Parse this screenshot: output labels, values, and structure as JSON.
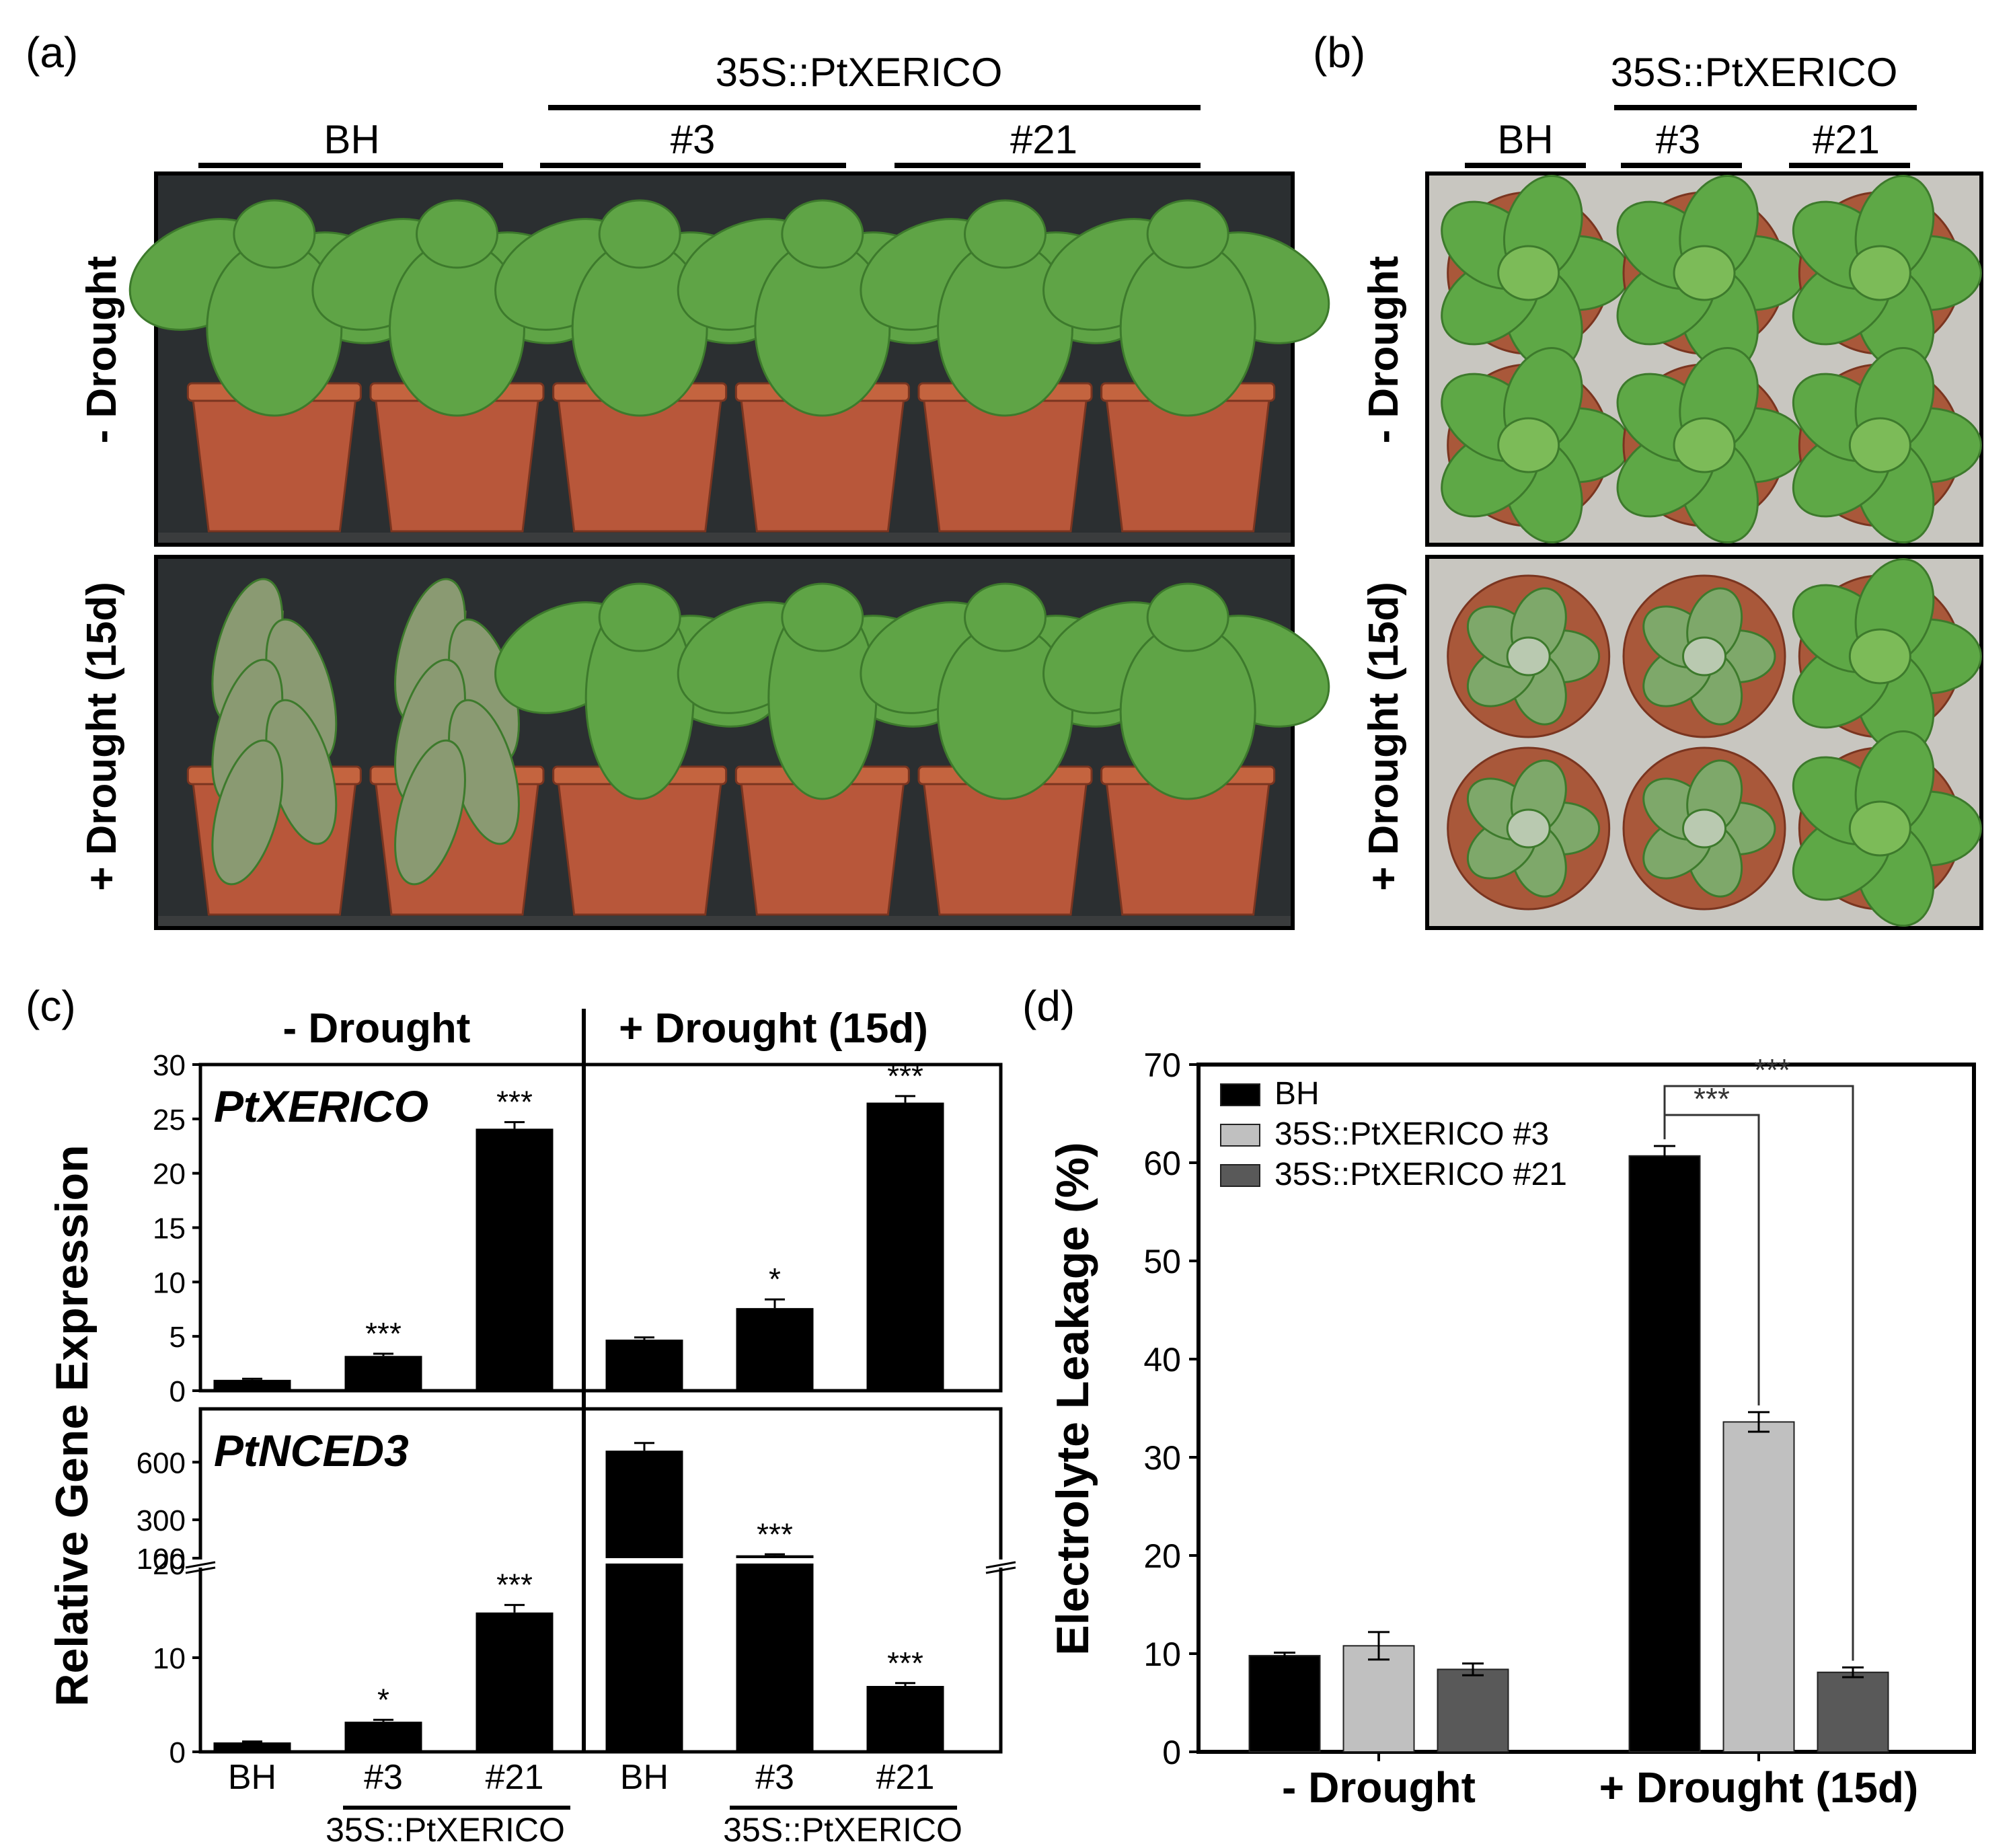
{
  "panels": {
    "a": {
      "label": "(a)",
      "group_label": "35S::PtXERICO",
      "columns": [
        "BH",
        "#3",
        "#21"
      ],
      "rows": [
        "- Drought",
        "+ Drought (15d)"
      ],
      "colors": {
        "background": "#2b2f31",
        "floor": "#3a3c3d",
        "pot": "#b8573a",
        "leaf": "#5fa446",
        "wilted": "#8a9a72"
      }
    },
    "b": {
      "label": "(b)",
      "group_label": "35S::PtXERICO",
      "columns": [
        "BH",
        "#3",
        "#21"
      ],
      "rows": [
        "- Drought",
        "+ Drought (15d)"
      ],
      "colors": {
        "background": "#c8c6c0",
        "pot": "#a9583a",
        "leaf": "#5ea846"
      }
    },
    "c": {
      "label": "(c)",
      "ylabel": "Relative Gene Expression",
      "conditions": [
        "- Drought",
        "+ Drought (15d)"
      ],
      "categories": [
        "BH",
        "#3",
        "#21",
        "BH",
        "#3",
        "#21"
      ],
      "group_labels": [
        "35S::PtXERICO",
        "35S::PtXERICO"
      ]
    },
    "d": {
      "label": "(d)",
      "ylabel": "Electrolyte Leakage (%)",
      "legend": [
        "BH",
        "35S::PtXERICO #3",
        "35S::PtXERICO #21"
      ],
      "sig_labels": [
        "***",
        "***"
      ]
    }
  },
  "chart_data": [
    {
      "type": "bar",
      "panel": "c-top",
      "gene": "PtXERICO",
      "categories": [
        "BH",
        "#3",
        "#21",
        "BH",
        "#3",
        "#21"
      ],
      "values": [
        1.0,
        3.2,
        24.1,
        4.7,
        7.6,
        26.5
      ],
      "errors": [
        0.1,
        0.2,
        0.6,
        0.2,
        0.8,
        0.6
      ],
      "significance": [
        "",
        "***",
        "***",
        "",
        "*",
        "***"
      ],
      "yticks": [
        0,
        5,
        10,
        15,
        20,
        25,
        30
      ],
      "ylim": [
        0,
        30
      ],
      "color": "#000000"
    },
    {
      "type": "bar",
      "panel": "c-bottom",
      "gene": "PtNCED3",
      "categories": [
        "BH",
        "#3",
        "#21",
        "BH",
        "#3",
        "#21"
      ],
      "values": [
        1.0,
        3.2,
        14.8,
        660,
        115,
        7.0
      ],
      "errors": [
        0.1,
        0.2,
        0.8,
        40,
        5,
        0.3
      ],
      "significance": [
        "",
        "*",
        "***",
        "",
        "***",
        "***"
      ],
      "yticks": [
        "0",
        "10",
        "20",
        "100",
        "300",
        "600"
      ],
      "axis_break": [
        20,
        100
      ],
      "ylim": [
        0,
        720
      ],
      "color": "#000000"
    },
    {
      "type": "bar",
      "panel": "d",
      "categories": [
        "- Drought",
        "+ Drought (15d)"
      ],
      "series": [
        {
          "name": "BH",
          "values": [
            9.8,
            60.7
          ],
          "errors": [
            0.3,
            1.0
          ],
          "color": "#000000"
        },
        {
          "name": "35S::PtXERICO #3",
          "values": [
            10.8,
            33.6
          ],
          "errors": [
            1.4,
            1.0
          ],
          "color": "#c0c0c0"
        },
        {
          "name": "35S::PtXERICO #21",
          "values": [
            8.4,
            8.1
          ],
          "errors": [
            0.6,
            0.5
          ],
          "color": "#595959"
        }
      ],
      "yticks": [
        0,
        10,
        20,
        30,
        40,
        50,
        60,
        70
      ],
      "ylim": [
        0,
        70
      ],
      "legend_position": "top-left"
    }
  ]
}
